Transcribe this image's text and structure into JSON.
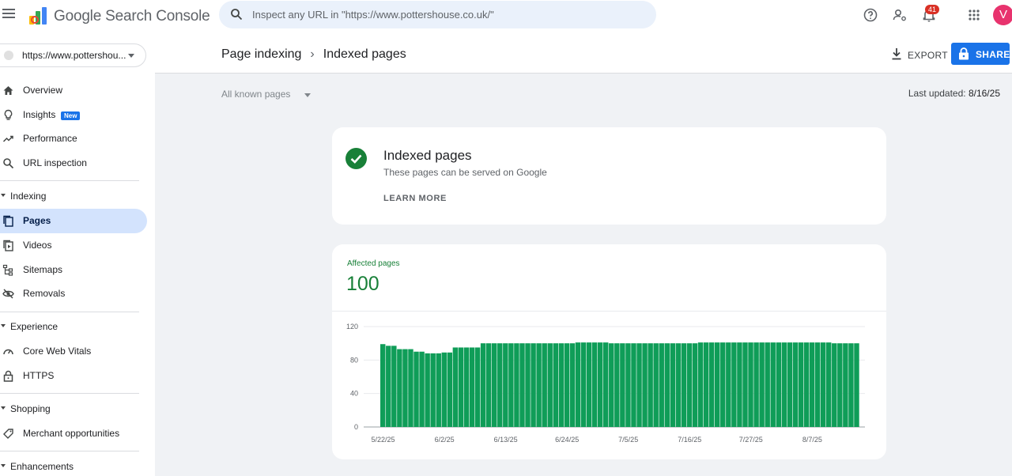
{
  "topbar": {
    "product_name": "Google Search Console",
    "search_placeholder": "Inspect any URL in \"https://www.pottershouse.co.uk/\"",
    "notification_count": "41",
    "avatar_initial": "V"
  },
  "sidebar": {
    "property": "https://www.pottershou...",
    "items": [
      {
        "label": "Overview",
        "icon": "home-icon"
      },
      {
        "label": "Insights",
        "icon": "lightbulb-icon",
        "badge": "New"
      },
      {
        "label": "Performance",
        "icon": "trending-up-icon"
      },
      {
        "label": "URL inspection",
        "icon": "search-icon"
      }
    ],
    "sections": [
      {
        "label": "Indexing",
        "items": [
          {
            "label": "Pages",
            "icon": "pages-icon",
            "active": true
          },
          {
            "label": "Videos",
            "icon": "video-icon"
          },
          {
            "label": "Sitemaps",
            "icon": "sitemap-icon"
          },
          {
            "label": "Removals",
            "icon": "eye-off-icon"
          }
        ]
      },
      {
        "label": "Experience",
        "items": [
          {
            "label": "Core Web Vitals",
            "icon": "gauge-icon"
          },
          {
            "label": "HTTPS",
            "icon": "lock-icon"
          }
        ]
      },
      {
        "label": "Shopping",
        "items": [
          {
            "label": "Merchant opportunities",
            "icon": "tag-icon"
          }
        ]
      },
      {
        "label": "Enhancements",
        "items": []
      }
    ]
  },
  "header": {
    "breadcrumb_parent": "Page indexing",
    "breadcrumb_current": "Indexed pages",
    "export_label": "EXPORT",
    "share_label": "SHARE"
  },
  "filter": {
    "selected": "All known pages"
  },
  "last_updated": {
    "label": "Last updated:",
    "value": "8/16/25"
  },
  "status_card": {
    "title": "Indexed pages",
    "subtitle": "These pages can be served on Google",
    "learn_more": "LEARN MORE"
  },
  "affected": {
    "label": "Affected pages",
    "value": "100"
  },
  "colors": {
    "accent": "#1a73e8",
    "success": "#188038",
    "bar": "#0f9d58",
    "active_nav": "#d3e3fd"
  },
  "chart_data": {
    "type": "bar",
    "ylim": [
      0,
      120
    ],
    "yticks": [
      0,
      40,
      80,
      120
    ],
    "x_tick_labels": [
      "5/22/25",
      "6/2/25",
      "6/13/25",
      "6/24/25",
      "7/5/25",
      "7/16/25",
      "7/27/25",
      "8/7/25"
    ],
    "x_tick_indices": [
      0,
      11,
      22,
      33,
      44,
      55,
      66,
      77
    ],
    "values": [
      99,
      97,
      97,
      93,
      93,
      93,
      90,
      90,
      88,
      88,
      88,
      89,
      89,
      95,
      95,
      95,
      95,
      95,
      100,
      100,
      100,
      100,
      100,
      100,
      100,
      100,
      100,
      100,
      100,
      100,
      100,
      100,
      100,
      100,
      100,
      101,
      101,
      101,
      101,
      101,
      101,
      100,
      100,
      100,
      100,
      100,
      100,
      100,
      100,
      100,
      100,
      100,
      100,
      100,
      100,
      100,
      100,
      101,
      101,
      101,
      101,
      101,
      101,
      101,
      101,
      101,
      101,
      101,
      101,
      101,
      101,
      101,
      101,
      101,
      101,
      101,
      101,
      101,
      101,
      101,
      101,
      100,
      100,
      100,
      100,
      100
    ]
  }
}
